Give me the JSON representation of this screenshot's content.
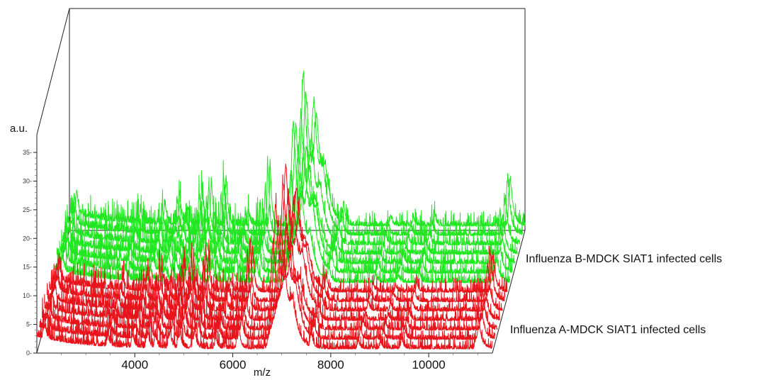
{
  "chart_data": {
    "type": "line",
    "title": "",
    "xlabel": "m/z",
    "ylabel": "a.u.",
    "xlim": [
      2000,
      11300
    ],
    "ylim": [
      0,
      36
    ],
    "xticks": [
      4000,
      6000,
      8000,
      10000
    ],
    "xtick_labels": [
      "4000",
      "6000",
      "8000",
      "10000"
    ],
    "yticks": [
      0,
      5,
      10,
      15,
      20,
      25,
      30,
      35
    ],
    "ytick_labels": [
      "0-",
      "5-",
      "10-",
      "15-",
      "20-",
      "25-",
      "30-",
      "35-"
    ],
    "series": [
      {
        "name": "Influenza A-MDCK SIAT1 infected cells",
        "color": "#e8141c",
        "spectra_count": 7
      },
      {
        "name": "Influenza B-MDCK SIAT1 infected cells",
        "color": "#22e622",
        "spectra_count": 7
      }
    ],
    "peaks": [
      {
        "mz": 2150,
        "height": 4.5
      },
      {
        "mz": 3450,
        "height": 2.5
      },
      {
        "mz": 3950,
        "height": 4
      },
      {
        "mz": 4250,
        "height": 5.5
      },
      {
        "mz": 4420,
        "height": 3
      },
      {
        "mz": 4700,
        "height": 6.5
      },
      {
        "mz": 4900,
        "height": 8
      },
      {
        "mz": 5200,
        "height": 9
      },
      {
        "mz": 5650,
        "height": 3
      },
      {
        "mz": 6100,
        "height": 11
      },
      {
        "mz": 6830,
        "height": 25
      },
      {
        "mz": 7050,
        "height": 17
      },
      {
        "mz": 7230,
        "height": 7
      },
      {
        "mz": 7600,
        "height": 4
      },
      {
        "mz": 8560,
        "height": 2
      },
      {
        "mz": 9020,
        "height": 1.6
      },
      {
        "mz": 9450,
        "height": 2.5
      },
      {
        "mz": 11000,
        "height": 9
      }
    ]
  }
}
